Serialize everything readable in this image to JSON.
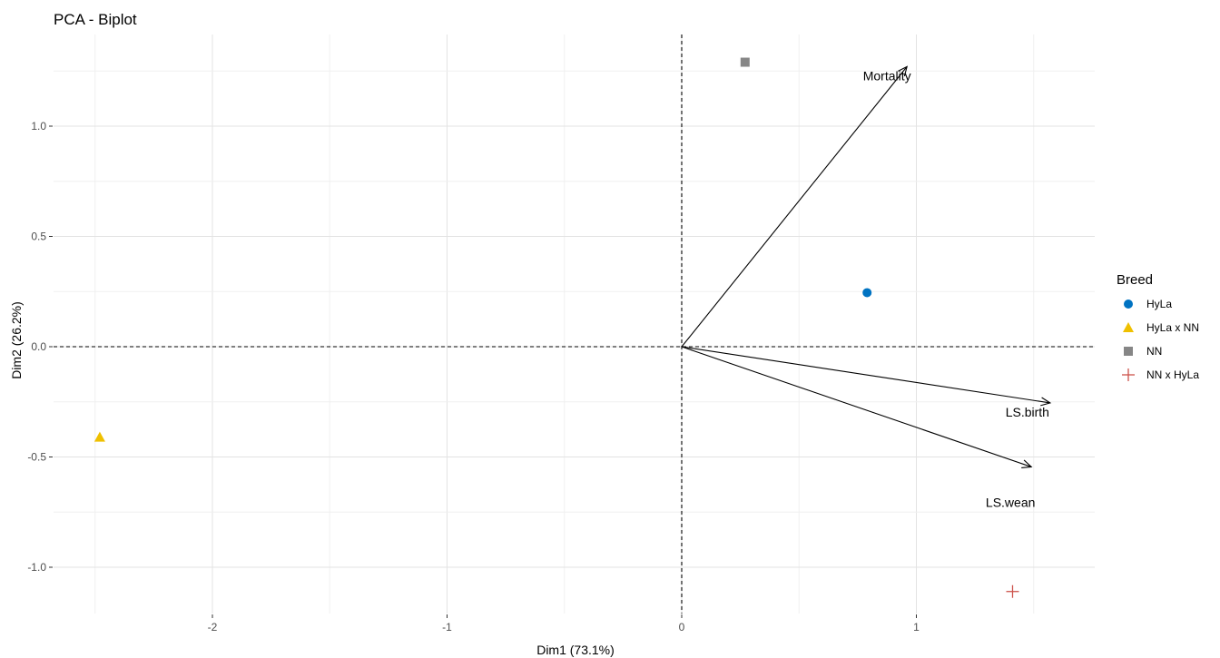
{
  "chart_data": {
    "type": "scatter",
    "subtype": "pca-biplot",
    "title": "PCA - Biplot",
    "xlabel": "Dim1 (73.1%)",
    "ylabel": "Dim2 (26.2%)",
    "xlim": [
      -2.57,
      1.78
    ],
    "ylim": [
      -1.19,
      1.41
    ],
    "xticks": [
      -2,
      -1,
      0,
      1
    ],
    "xtick_labels": [
      "-2",
      "-1",
      "0",
      "1"
    ],
    "yticks": [
      -1.0,
      -0.5,
      0.0,
      0.5,
      1.0
    ],
    "ytick_labels": [
      "-1.0",
      "-0.5",
      "0.0",
      "0.5",
      "1.0"
    ],
    "grid": true,
    "legend_position": "right",
    "legend_title": "Breed",
    "individuals": [
      {
        "name": "HyLa",
        "x": 0.79,
        "y": 0.245,
        "shape": "circle",
        "color": "#0073C2"
      },
      {
        "name": "HyLa x NN",
        "x": -2.48,
        "y": -0.41,
        "shape": "triangle",
        "color": "#EFC000"
      },
      {
        "name": "NN",
        "x": 0.27,
        "y": 1.29,
        "shape": "square",
        "color": "#868686"
      },
      {
        "name": "NN x HyLa",
        "x": 1.41,
        "y": -1.11,
        "shape": "cross",
        "color": "#CD534C"
      }
    ],
    "variables": [
      {
        "name": "Mortality",
        "x": 0.96,
        "y": 1.27
      },
      {
        "name": "LS.birth",
        "x": 1.57,
        "y": -0.255
      },
      {
        "name": "LS.wean",
        "x": 1.49,
        "y": -0.545
      }
    ]
  }
}
